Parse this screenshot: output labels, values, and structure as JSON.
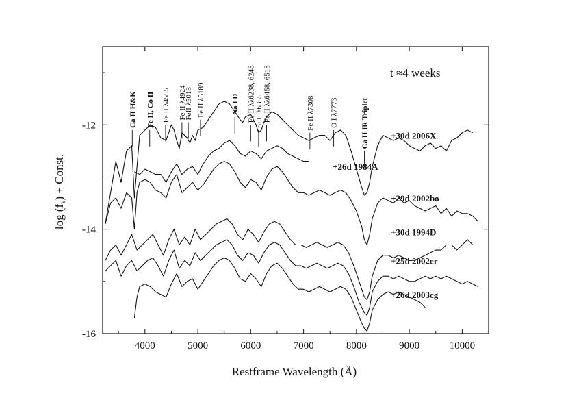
{
  "chart_data": {
    "type": "line",
    "title": "",
    "xlabel": "Restframe Wavelength (Å)",
    "ylabel_main": "log (f",
    "ylabel_sub": "λ",
    "ylabel_tail": ") + Const.",
    "xlim": [
      3200,
      10500
    ],
    "ylim": [
      -16,
      -10.5
    ],
    "x_ticks": [
      4000,
      5000,
      6000,
      7000,
      8000,
      9000,
      10000
    ],
    "x_tick_labels": [
      "4000",
      "5000",
      "6000",
      "7000",
      "8000",
      "9000",
      "10000"
    ],
    "y_ticks": [
      -12,
      -14,
      -16
    ],
    "y_tick_labels": [
      "-12",
      "-14",
      "-16"
    ],
    "annotation_epoch": "t ≈4 weeks",
    "features": [
      {
        "label": "Ca II H&K",
        "x": 3760,
        "y": -12.1,
        "bold": true
      },
      {
        "label": "Fe II, Co II",
        "x": 4090,
        "y": -12.1,
        "bold": true
      },
      {
        "label": "Fe II λ4555",
        "x": 4390,
        "y": -12.0,
        "bold": false
      },
      {
        "label": "Fe II λ4924",
        "x": 4700,
        "y": -11.95,
        "bold": false
      },
      {
        "label": "FeII λ5018",
        "x": 4820,
        "y": -11.95,
        "bold": false
      },
      {
        "label": "Fe II λ5189",
        "x": 5050,
        "y": -11.9,
        "bold": false
      },
      {
        "label": "Na I D",
        "x": 5700,
        "y": -11.85,
        "bold": true
      },
      {
        "label": "Fe II λλ6238, 6248",
        "x": 6000,
        "y": -12.0,
        "bold": false
      },
      {
        "label": "Si II λ6355",
        "x": 6150,
        "y": -12.1,
        "bold": false
      },
      {
        "label": "Fe II λλ6458, 6518",
        "x": 6300,
        "y": -12.0,
        "bold": false
      },
      {
        "label": "Fe II λ7308",
        "x": 7120,
        "y": -12.15,
        "bold": false
      },
      {
        "label": "O I λ7773",
        "x": 7570,
        "y": -12.1,
        "bold": false
      },
      {
        "label": "Ca II IR Triplet",
        "x": 8150,
        "y": -12.5,
        "bold": true
      }
    ],
    "series": [
      {
        "name": "+30d 2006X",
        "label": "+30d 2006X",
        "label_x": 8650,
        "label_y": -12.2,
        "x": [
          3250,
          3350,
          3450,
          3550,
          3650,
          3750,
          3800,
          3850,
          3900,
          4000,
          4100,
          4200,
          4300,
          4400,
          4500,
          4550,
          4600,
          4650,
          4700,
          4800,
          4850,
          4900,
          4950,
          5000,
          5100,
          5200,
          5300,
          5400,
          5500,
          5600,
          5700,
          5800,
          5850,
          5900,
          6000,
          6100,
          6150,
          6200,
          6250,
          6300,
          6400,
          6500,
          6600,
          6700,
          6800,
          6900,
          7000,
          7100,
          7200,
          7300,
          7400,
          7500,
          7600,
          7700,
          7800,
          7900,
          8000,
          8100,
          8150,
          8200,
          8250,
          8300,
          8400,
          8500,
          8600,
          8700,
          8800,
          8900,
          9000,
          9100,
          9200,
          9300,
          9400,
          9500,
          9600,
          9700,
          9800,
          9900,
          10000,
          10100,
          10200
        ],
        "y": [
          -13.9,
          -13.3,
          -12.7,
          -13.1,
          -12.5,
          -12.4,
          -13.4,
          -12.8,
          -12.2,
          -12.1,
          -12.0,
          -12.05,
          -12.25,
          -12.3,
          -12.0,
          -12.1,
          -12.3,
          -12.45,
          -12.15,
          -12.25,
          -12.35,
          -12.2,
          -12.3,
          -12.1,
          -12.05,
          -11.9,
          -11.75,
          -11.6,
          -11.55,
          -11.6,
          -11.75,
          -11.9,
          -11.95,
          -11.85,
          -11.8,
          -12.0,
          -12.15,
          -12.1,
          -11.95,
          -11.85,
          -11.75,
          -11.8,
          -11.9,
          -12.0,
          -12.1,
          -12.2,
          -12.25,
          -12.3,
          -12.25,
          -12.2,
          -12.2,
          -12.3,
          -12.15,
          -12.1,
          -12.2,
          -12.5,
          -12.85,
          -13.2,
          -13.35,
          -13.3,
          -13.1,
          -12.8,
          -12.4,
          -12.2,
          -12.25,
          -12.3,
          -12.25,
          -12.3,
          -12.4,
          -12.45,
          -12.5,
          -12.4,
          -12.35,
          -12.45,
          -12.4,
          -12.5,
          -12.3,
          -12.25,
          -12.15,
          -12.1,
          -12.15
        ]
      },
      {
        "name": "+26d 1984A",
        "label": "+26d 1984A",
        "label_x": 7550,
        "label_y": -12.8,
        "x": [
          3800,
          3900,
          4000,
          4100,
          4200,
          4300,
          4400,
          4500,
          4600,
          4700,
          4800,
          4900,
          5000,
          5100,
          5200,
          5300,
          5400,
          5500,
          5600,
          5700,
          5800,
          5900,
          6000,
          6100,
          6200,
          6300,
          6400,
          6500,
          6600,
          6700,
          6800,
          6900,
          7000,
          7100
        ],
        "y": [
          -12.9,
          -12.95,
          -12.85,
          -12.9,
          -12.95,
          -12.95,
          -13.1,
          -12.9,
          -12.75,
          -12.95,
          -12.85,
          -12.8,
          -12.95,
          -12.75,
          -12.6,
          -12.5,
          -12.45,
          -12.35,
          -12.3,
          -12.4,
          -12.55,
          -12.6,
          -12.5,
          -12.55,
          -12.65,
          -12.5,
          -12.45,
          -12.4,
          -12.45,
          -12.55,
          -12.6,
          -12.65,
          -12.7,
          -12.7
        ]
      },
      {
        "name": "+29d 2002bo",
        "label": "+29d 2002bo",
        "label_x": 8650,
        "label_y": -13.4,
        "x": [
          3250,
          3350,
          3450,
          3550,
          3650,
          3750,
          3800,
          3850,
          3900,
          4000,
          4100,
          4200,
          4300,
          4400,
          4500,
          4600,
          4700,
          4800,
          4900,
          5000,
          5100,
          5200,
          5300,
          5400,
          5500,
          5600,
          5700,
          5800,
          5900,
          6000,
          6100,
          6200,
          6300,
          6400,
          6500,
          6600,
          6700,
          6800,
          6900,
          7000,
          7100,
          7200,
          7300,
          7400,
          7500,
          7600,
          7700,
          7800,
          7900,
          8000,
          8100,
          8150,
          8200,
          8250,
          8300,
          8400,
          8500,
          8600,
          8700,
          8800,
          8900,
          9000,
          9100,
          9200,
          9300,
          9400,
          9500,
          9600,
          9700,
          9800,
          9900,
          10000,
          10100,
          10200,
          10300
        ],
        "y": [
          -13.9,
          -13.5,
          -13.4,
          -13.6,
          -13.3,
          -13.4,
          -14.0,
          -13.3,
          -13.1,
          -13.05,
          -13.1,
          -13.25,
          -13.3,
          -13.4,
          -13.1,
          -12.95,
          -13.3,
          -13.2,
          -13.1,
          -13.25,
          -13.15,
          -13.0,
          -12.85,
          -12.75,
          -12.7,
          -12.75,
          -12.9,
          -13.1,
          -13.2,
          -13.05,
          -13.1,
          -13.25,
          -13.0,
          -12.85,
          -12.8,
          -12.9,
          -13.05,
          -13.2,
          -13.3,
          -13.3,
          -13.35,
          -13.3,
          -13.25,
          -13.3,
          -13.35,
          -13.3,
          -13.25,
          -13.3,
          -13.45,
          -13.65,
          -13.95,
          -14.2,
          -14.3,
          -14.1,
          -13.8,
          -13.5,
          -13.4,
          -13.45,
          -13.5,
          -13.4,
          -13.5,
          -13.45,
          -13.55,
          -13.6,
          -13.65,
          -13.6,
          -13.55,
          -13.7,
          -13.6,
          -13.75,
          -13.65,
          -13.7,
          -13.7,
          -13.75,
          -13.85
        ]
      },
      {
        "name": "+30d 1994D",
        "label": "+30d 1994D",
        "label_x": 8650,
        "label_y": -14.05,
        "x": [
          3250,
          3350,
          3450,
          3550,
          3650,
          3750,
          3850,
          3950,
          4050,
          4150,
          4250,
          4350,
          4450,
          4550,
          4650,
          4750,
          4850,
          4950,
          5050,
          5150,
          5250,
          5350,
          5450,
          5550,
          5650,
          5750,
          5850,
          5950,
          6050,
          6150,
          6250,
          6350,
          6450,
          6550,
          6650,
          6750,
          6850,
          6950,
          7050,
          7150,
          7250,
          7350,
          7450,
          7550,
          7650,
          7750,
          7850,
          7950,
          8050,
          8150,
          8200,
          8250,
          8300,
          8400,
          8500,
          8600,
          8700,
          8800,
          8900,
          9000,
          9100,
          9200,
          9300,
          9400,
          9500,
          9600,
          9700,
          9800,
          9900,
          10000,
          10100,
          10200
        ],
        "y": [
          -14.6,
          -14.4,
          -14.3,
          -14.5,
          -14.3,
          -14.1,
          -14.4,
          -14.3,
          -14.2,
          -14.1,
          -14.3,
          -14.5,
          -14.2,
          -14.0,
          -14.3,
          -14.15,
          -14.3,
          -14.0,
          -14.2,
          -14.1,
          -14.0,
          -13.9,
          -13.85,
          -13.8,
          -13.9,
          -14.1,
          -14.2,
          -14.0,
          -14.1,
          -14.25,
          -14.05,
          -13.9,
          -13.85,
          -13.9,
          -14.05,
          -14.2,
          -14.3,
          -14.3,
          -14.35,
          -14.3,
          -14.25,
          -14.3,
          -14.35,
          -14.3,
          -14.25,
          -14.3,
          -14.45,
          -14.7,
          -15.0,
          -15.3,
          -15.35,
          -15.2,
          -14.9,
          -14.6,
          -14.5,
          -14.5,
          -14.55,
          -14.5,
          -14.55,
          -14.6,
          -14.6,
          -14.55,
          -14.5,
          -14.45,
          -14.4,
          -14.4,
          -14.3,
          -14.3,
          -14.4,
          -14.3,
          -14.2,
          -14.3
        ]
      },
      {
        "name": "+25d 2002er",
        "label": "+25d 2002er",
        "label_x": 8650,
        "label_y": -14.6,
        "x": [
          3250,
          3350,
          3450,
          3550,
          3650,
          3750,
          3850,
          3950,
          4050,
          4150,
          4250,
          4350,
          4450,
          4550,
          4650,
          4750,
          4850,
          4950,
          5050,
          5150,
          5250,
          5350,
          5450,
          5550,
          5650,
          5750,
          5850,
          5950,
          6050,
          6150,
          6250,
          6350,
          6450,
          6550,
          6650,
          6750,
          6850,
          6950,
          7050,
          7150,
          7250,
          7350,
          7450,
          7550,
          7650,
          7750,
          7850,
          7950,
          8050,
          8150,
          8200,
          8250,
          8300,
          8400,
          8500,
          8600,
          8700,
          8800,
          8900,
          9000,
          9100,
          9200,
          9300,
          9400,
          9500,
          9600,
          9700,
          9800,
          9900,
          10000,
          10100,
          10200,
          10300
        ],
        "y": [
          -14.8,
          -14.7,
          -14.6,
          -14.9,
          -14.7,
          -14.6,
          -14.8,
          -14.7,
          -14.6,
          -14.55,
          -14.7,
          -14.9,
          -14.6,
          -14.4,
          -14.75,
          -14.6,
          -14.7,
          -14.45,
          -14.6,
          -14.5,
          -14.4,
          -14.3,
          -14.25,
          -14.2,
          -14.3,
          -14.5,
          -14.6,
          -14.45,
          -14.5,
          -14.65,
          -14.45,
          -14.3,
          -14.25,
          -14.3,
          -14.45,
          -14.6,
          -14.7,
          -14.7,
          -14.75,
          -14.7,
          -14.65,
          -14.7,
          -14.75,
          -14.7,
          -14.65,
          -14.7,
          -14.85,
          -15.1,
          -15.4,
          -15.6,
          -15.65,
          -15.5,
          -15.2,
          -15.0,
          -14.9,
          -14.9,
          -14.95,
          -14.9,
          -14.95,
          -15.0,
          -15.0,
          -14.95,
          -14.9,
          -14.95,
          -14.9,
          -14.95,
          -14.9,
          -14.95,
          -15.0,
          -15.05,
          -15.0,
          -15.05,
          -15.1
        ]
      },
      {
        "name": "+26d 2003cg",
        "label": "+26d 2003cg",
        "label_x": 8650,
        "label_y": -15.25,
        "x": [
          3800,
          3850,
          3900,
          4000,
          4100,
          4200,
          4300,
          4400,
          4500,
          4600,
          4700,
          4800,
          4900,
          5000,
          5100,
          5200,
          5300,
          5400,
          5500,
          5600,
          5700,
          5800,
          5900,
          6000,
          6100,
          6200,
          6300,
          6400,
          6500,
          6600,
          6700,
          6800,
          6900,
          7000,
          7100,
          7200,
          7300,
          7400,
          7500,
          7600,
          7700,
          7800,
          7900,
          8000,
          8100,
          8150,
          8200,
          8250,
          8300,
          8400,
          8500,
          8600,
          8700,
          8800,
          8900,
          9000,
          9100,
          9200,
          9300
        ],
        "y": [
          -15.7,
          -15.3,
          -15.1,
          -15.05,
          -15.1,
          -15.2,
          -15.25,
          -15.3,
          -15.05,
          -14.85,
          -15.1,
          -15.0,
          -14.95,
          -15.15,
          -15.0,
          -14.85,
          -14.7,
          -14.6,
          -14.55,
          -14.6,
          -14.75,
          -14.95,
          -15.0,
          -14.85,
          -14.95,
          -15.1,
          -14.85,
          -14.7,
          -14.65,
          -14.75,
          -14.9,
          -15.05,
          -15.15,
          -15.15,
          -15.2,
          -15.15,
          -15.1,
          -15.15,
          -15.2,
          -15.15,
          -15.1,
          -15.15,
          -15.3,
          -15.55,
          -15.8,
          -15.9,
          -15.95,
          -15.8,
          -15.55,
          -15.35,
          -15.25,
          -15.2,
          -15.25,
          -15.2,
          -15.25,
          -15.3,
          -15.35,
          -15.4,
          -15.5
        ]
      }
    ]
  }
}
